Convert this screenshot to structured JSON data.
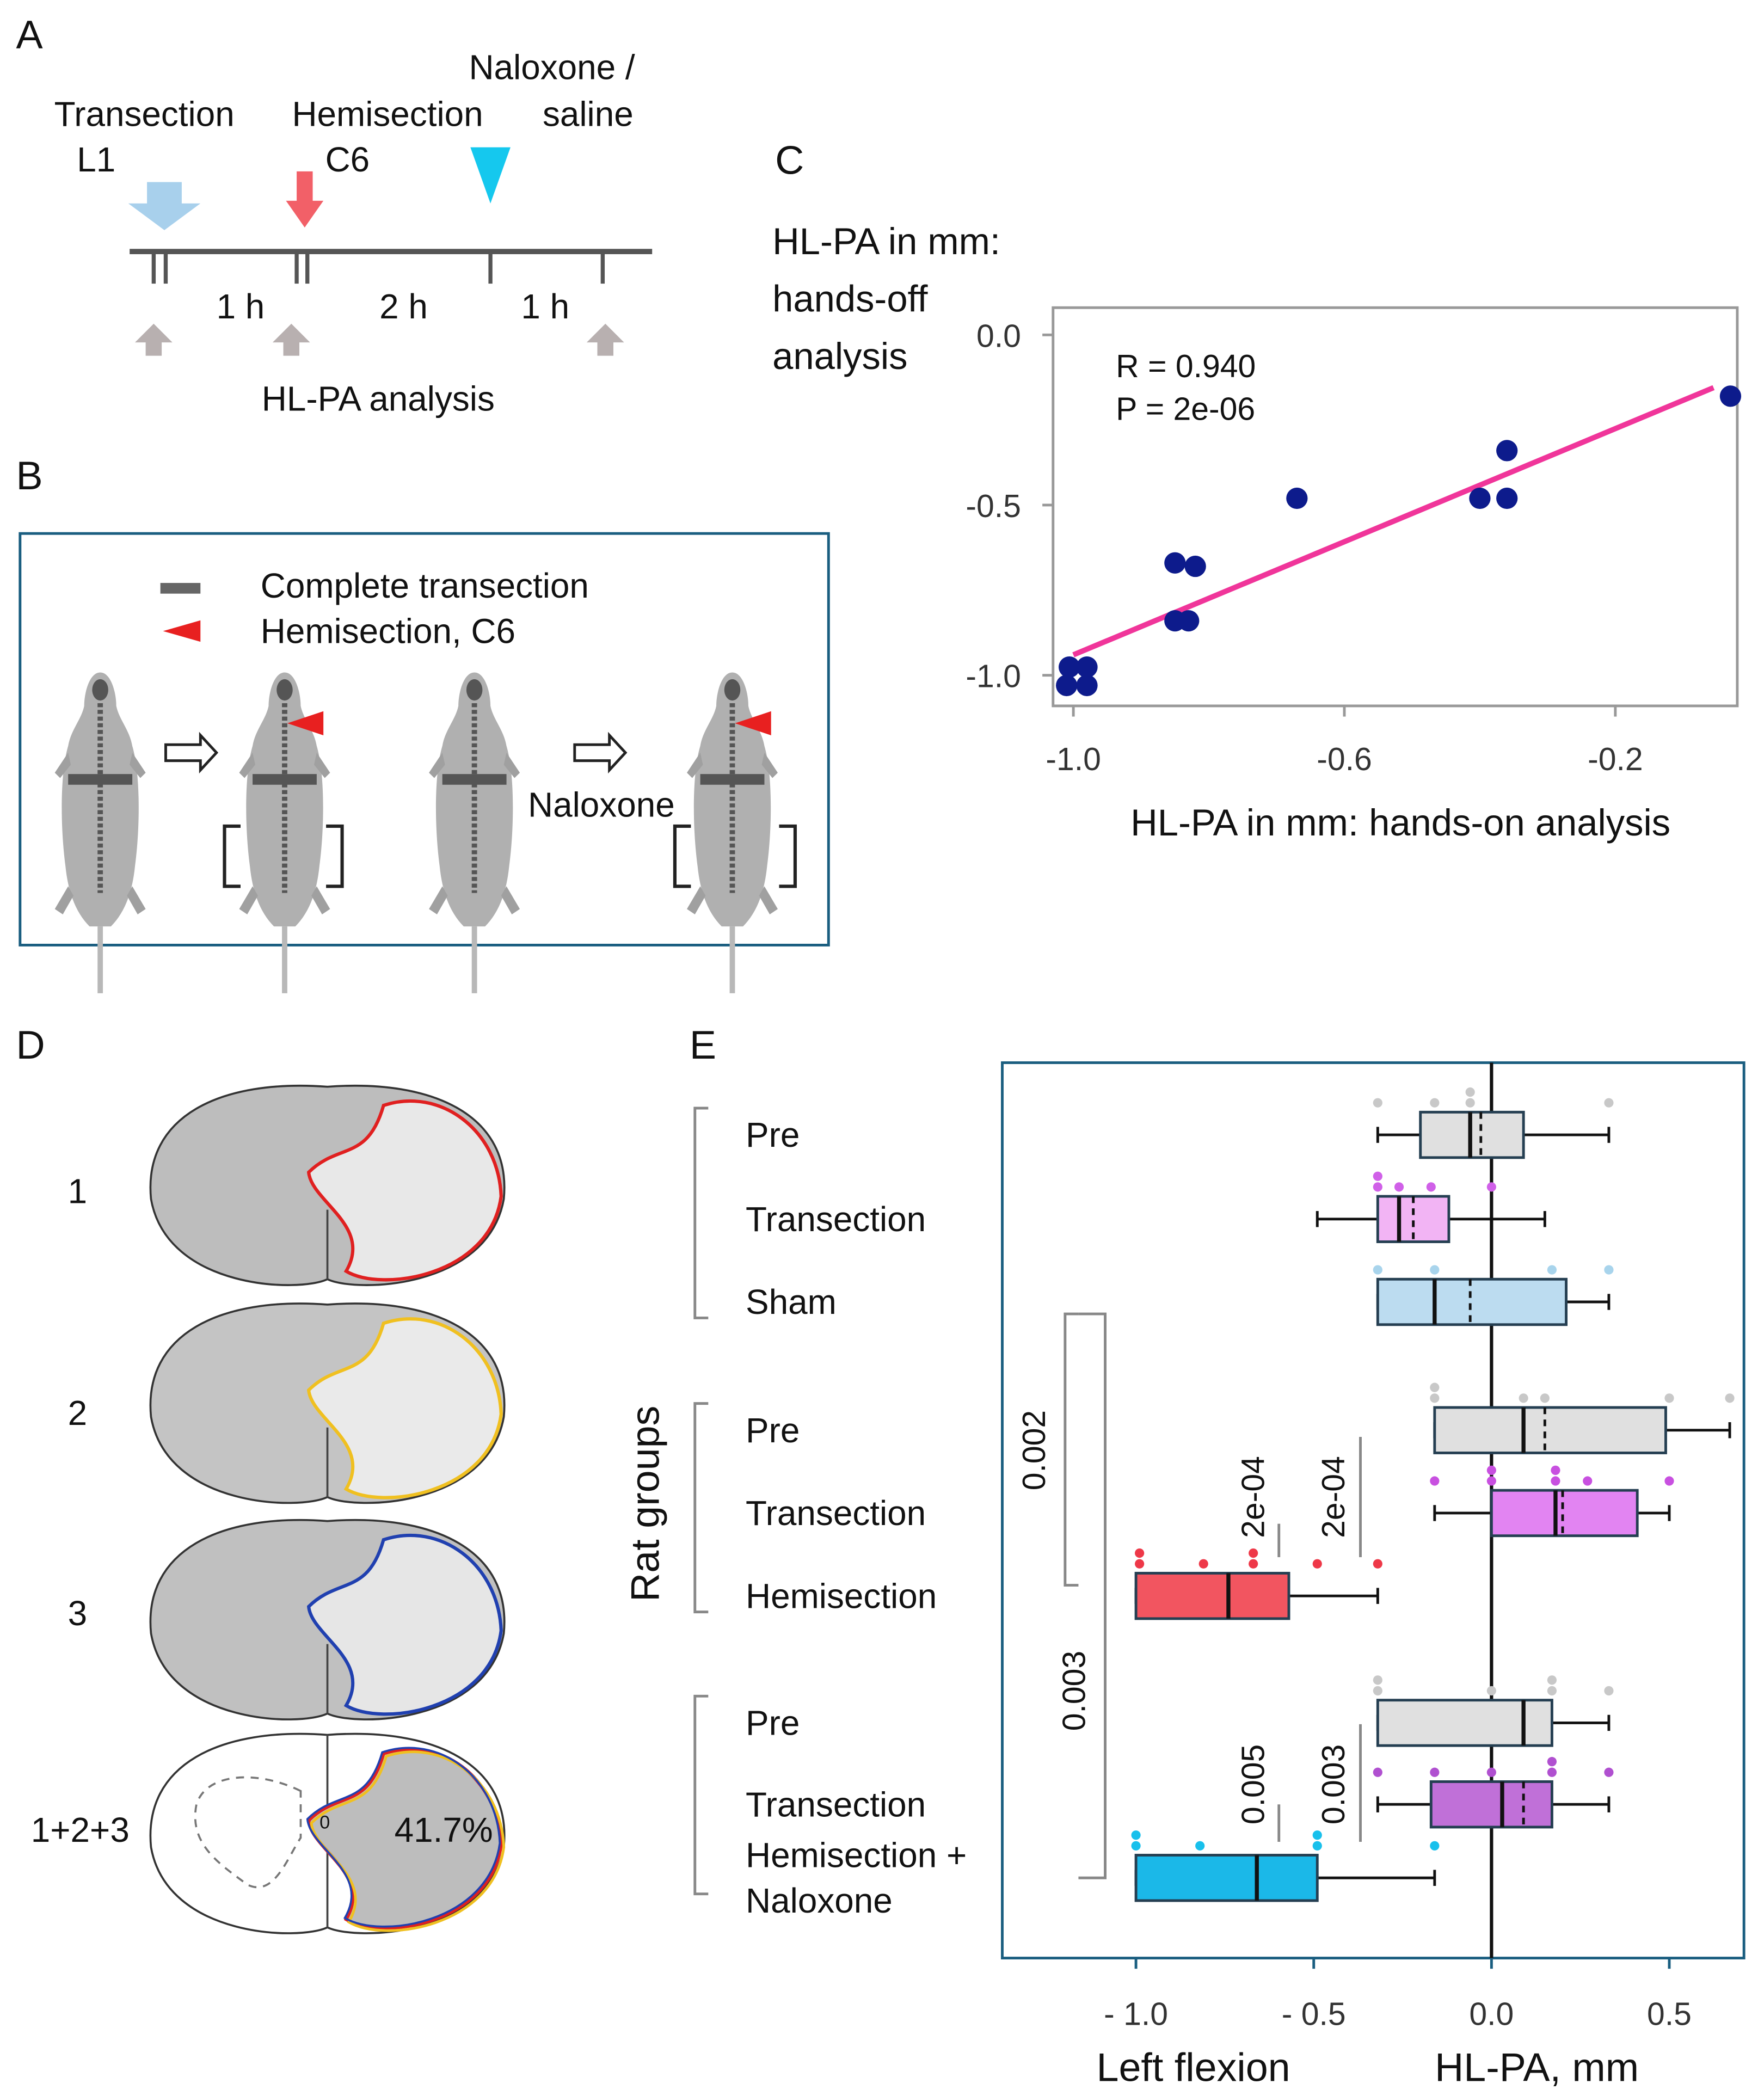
{
  "panel_labels": [
    "A",
    "B",
    "C",
    "D",
    "E"
  ],
  "panel_a": {
    "events": [
      [
        "Transection",
        "L1"
      ],
      [
        "Hemisection",
        "C6"
      ],
      [
        "Naloxone /",
        "saline"
      ]
    ],
    "intervals": [
      "1 h",
      "2 h",
      "1 h"
    ],
    "analysis": "HL-PA analysis"
  },
  "panel_b": {
    "legend": [
      "Complete transection",
      "Hemisection, C6"
    ],
    "treatment": "Naloxone"
  },
  "panel_d": {
    "sections": [
      "1",
      "2",
      "3",
      "1+2+3"
    ],
    "percent": "41.7%",
    "center_mark": "0"
  },
  "chart_data": [
    {
      "type": "scatter",
      "ylabel": [
        "HL-PA in mm:",
        "hands-off",
        "analysis"
      ],
      "xlabel": "HL-PA in mm: hands-on analysis",
      "annotations": [
        "R = 0.940",
        "P = 2e-06"
      ],
      "x": [
        -1.006,
        -0.98,
        -1.01,
        -0.98,
        -0.85,
        -0.82,
        -0.85,
        -0.83,
        -0.67,
        -0.4,
        -0.36,
        -0.36,
        -0.03
      ],
      "y": [
        -0.976,
        -0.976,
        -1.03,
        -1.03,
        -0.67,
        -0.68,
        -0.84,
        -0.84,
        -0.48,
        -0.48,
        -0.48,
        -0.34,
        -0.18
      ],
      "color": "#0d1b8c",
      "fit": {
        "x": [
          -1.0,
          -0.055
        ],
        "y": [
          -0.94,
          -0.155
        ],
        "color": "#f0359a"
      },
      "xlim": [
        -1.03,
        -0.02
      ],
      "ylim": [
        -1.09,
        0.08
      ],
      "xticks": [
        {
          "value": -1.0,
          "label": "-1.0"
        },
        -0.6,
        -0.2
      ],
      "yticks": [
        {
          "value": 0,
          "label": "0.0"
        },
        -0.5,
        {
          "value": -1.0,
          "label": "-1.0"
        }
      ]
    },
    {
      "type": "box",
      "ylabel": "Rat groups",
      "xlabel": [
        "Left flexion",
        "HL-PA, mm"
      ],
      "categories": [
        [
          "Pre"
        ],
        [
          "Transection"
        ],
        [
          "Sham"
        ],
        [
          "Pre"
        ],
        [
          "Transection"
        ],
        [
          "Hemisection"
        ],
        [
          "Pre"
        ],
        [
          "Transection"
        ],
        [
          "Hemisection +",
          "Naloxone"
        ]
      ],
      "boxes": [
        {
          "color": "#e0e0e0",
          "point_color": "#c8c8c8",
          "whisker_low": -0.32,
          "q1": -0.2,
          "median": -0.06,
          "mean": -0.03,
          "q3": 0.09,
          "whisker_high": 0.33,
          "points": [
            -0.32,
            -0.16,
            -0.06,
            -0.06,
            0.33
          ]
        },
        {
          "color": "#f2b4f4",
          "point_color": "#d060e8",
          "whisker_low": -0.49,
          "q1": -0.32,
          "median": -0.26,
          "mean": -0.22,
          "q3": -0.12,
          "whisker_high": 0.15,
          "points": [
            -0.32,
            -0.32,
            -0.26,
            -0.17,
            0.0
          ]
        },
        {
          "color": "#bcdcf0",
          "point_color": "#a8d4ec",
          "whisker_low": -0.32,
          "q1": -0.32,
          "median": -0.16,
          "mean": -0.06,
          "q3": 0.21,
          "whisker_high": 0.33,
          "points": [
            -0.32,
            -0.16,
            0.17,
            0.33
          ]
        },
        {
          "color": "#e0e0e0",
          "point_color": "#c8c8c8",
          "whisker_low": -0.16,
          "q1": -0.16,
          "median": 0.09,
          "mean": 0.15,
          "q3": 0.49,
          "whisker_high": 0.67,
          "points": [
            -0.16,
            -0.16,
            0.09,
            0.15,
            0.5,
            0.67
          ]
        },
        {
          "color": "#e284f2",
          "point_color": "#c850e0",
          "whisker_low": -0.16,
          "q1": 0.0,
          "median": 0.18,
          "mean": 0.2,
          "q3": 0.41,
          "whisker_high": 0.5,
          "points": [
            -0.16,
            0.0,
            0.0,
            0.18,
            0.18,
            0.27,
            0.5
          ]
        },
        {
          "color": "#f25560",
          "point_color": "#ee3848",
          "whisker_low": -1.0,
          "q1": -1.0,
          "median": -0.74,
          "mean": -0.74,
          "q3": -0.57,
          "whisker_high": -0.32,
          "points": [
            -0.99,
            -0.99,
            -0.81,
            -0.67,
            -0.67,
            -0.49,
            -0.32
          ]
        },
        {
          "color": "#e0e0e0",
          "point_color": "#c8c8c8",
          "whisker_low": -0.32,
          "q1": -0.32,
          "median": 0.09,
          "mean": 0.09,
          "q3": 0.17,
          "whisker_high": 0.33,
          "points": [
            -0.32,
            -0.32,
            0.0,
            0.17,
            0.17,
            0.33
          ]
        },
        {
          "color": "#c070d8",
          "point_color": "#b050d0",
          "whisker_low": -0.32,
          "q1": -0.17,
          "median": 0.03,
          "mean": 0.09,
          "q3": 0.17,
          "whisker_high": 0.33,
          "points": [
            -0.32,
            -0.16,
            0.0,
            0.17,
            0.17,
            0.33
          ]
        },
        {
          "color": "#1bb8e8",
          "point_color": "#18c0ec",
          "whisker_low": -1.0,
          "q1": -1.0,
          "median": -0.66,
          "mean": -0.66,
          "q3": -0.49,
          "whisker_high": -0.16,
          "points": [
            -1.0,
            -1.0,
            -0.82,
            -0.49,
            -0.49,
            -0.16
          ]
        }
      ],
      "xlim": [
        -1.376,
        0.71
      ],
      "xticks": [
        {
          "value": -1.0,
          "label": "- 1.0"
        },
        {
          "value": -0.5,
          "label": "- 0.5"
        },
        {
          "value": 0,
          "label": "0.0"
        },
        0.5
      ],
      "significance": [
        "0.002",
        "0.003",
        "2e-04",
        "2e-04",
        "0.005",
        "0.003"
      ]
    }
  ]
}
